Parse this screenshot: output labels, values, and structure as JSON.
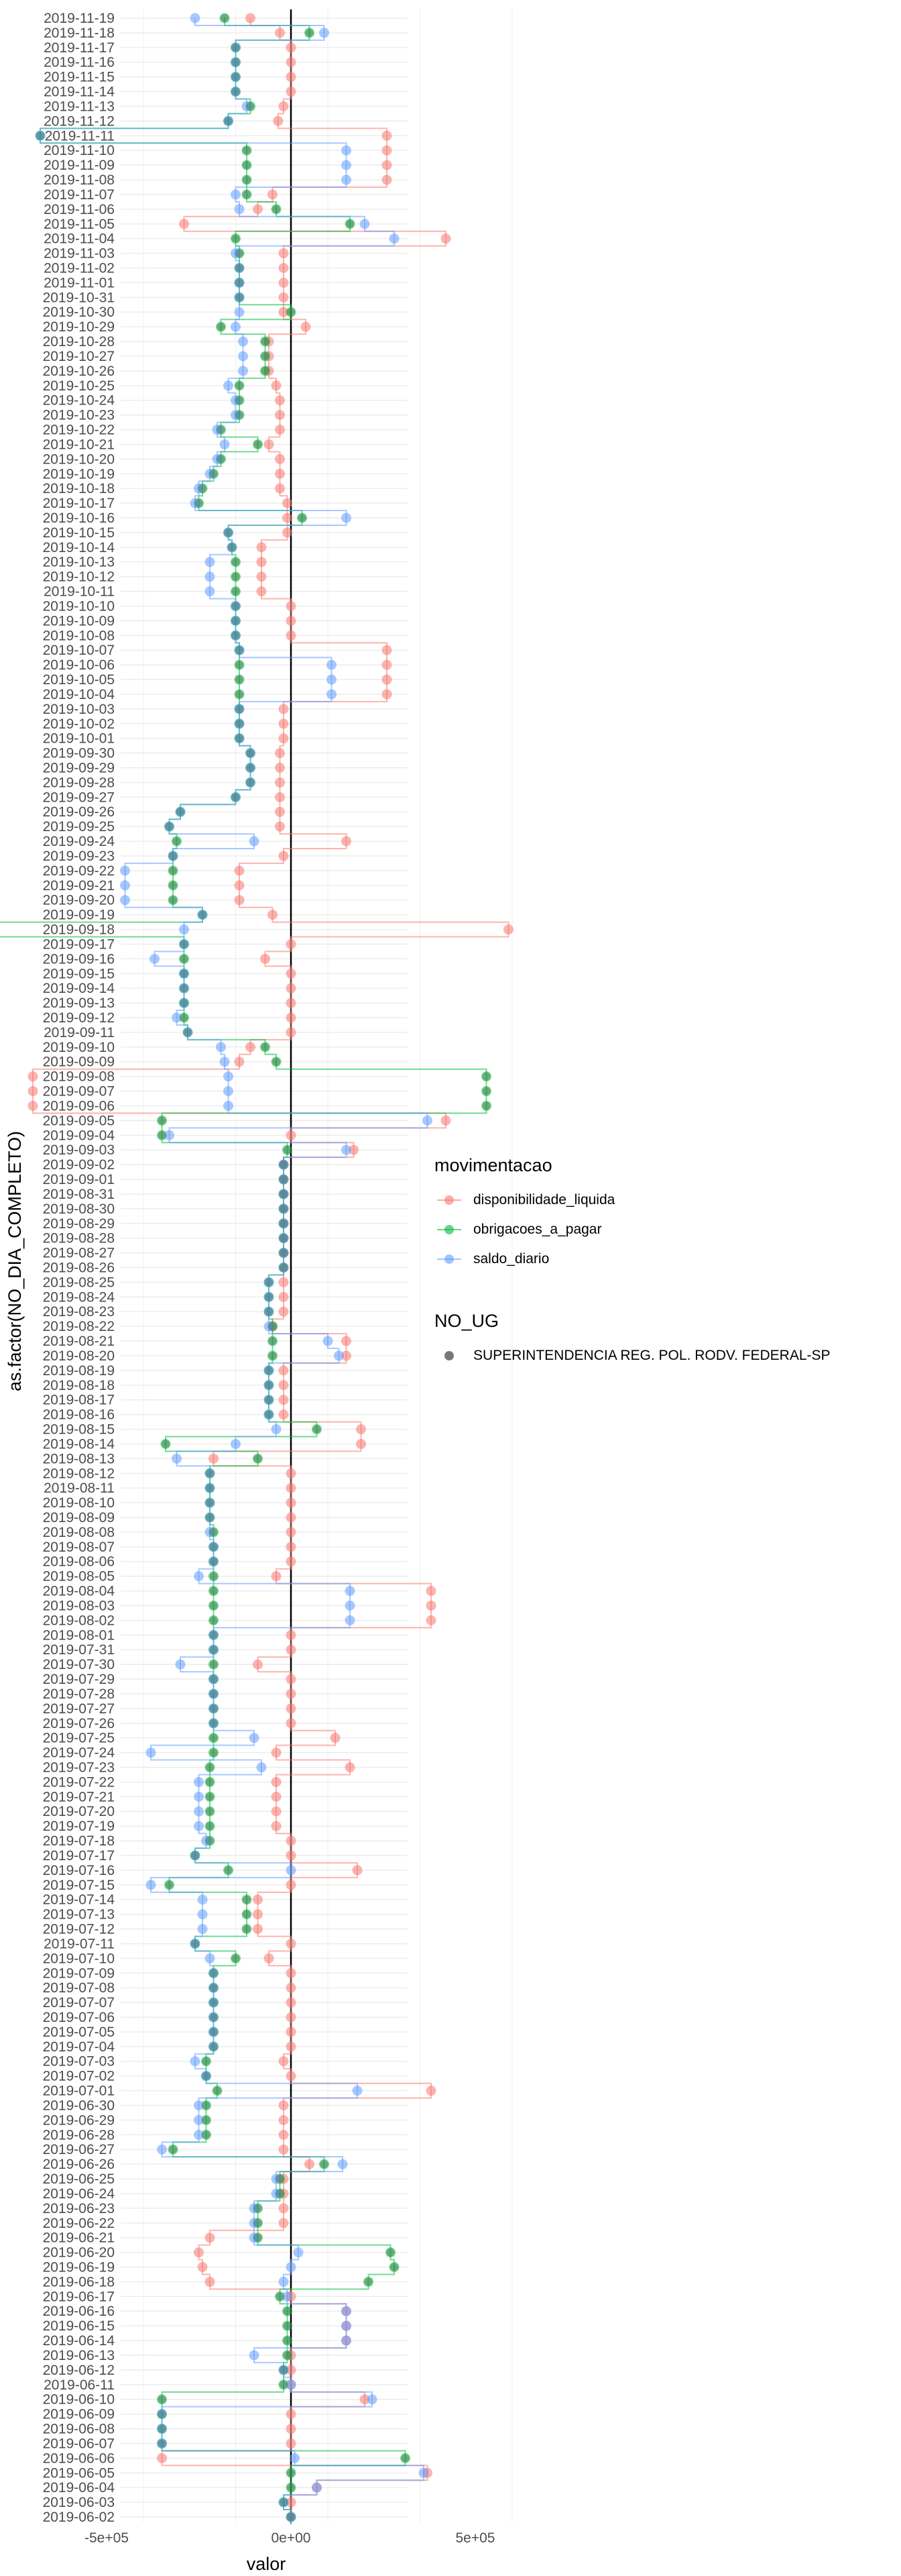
{
  "chart_data": {
    "type": "scatter",
    "xlabel": "valor",
    "ylabel": "as.factor(NO_DIA_COMPLETO)",
    "xlim": [
      -900000,
      700000
    ],
    "x_ticks": [
      -500000,
      0,
      500000
    ],
    "x_tick_labels": [
      "-5e+05",
      "0e+00",
      "5e+05"
    ],
    "grid": true,
    "legend_position": "right",
    "legend": {
      "color_title": "movimentacao",
      "color_entries": [
        "disponibilidade_liquida",
        "obrigacoes_a_pagar",
        "saldo_diario"
      ],
      "shape_title": "NO_UG",
      "shape_entries": [
        "SUPERINTENDENCIA REG. POL. RODV. FEDERAL-SP"
      ]
    },
    "colors": {
      "disponibilidade_liquida": "#F8766D",
      "obrigacoes_a_pagar": "#00BA38",
      "saldo_diario": "#619CFF",
      "shape_point": "#555555"
    },
    "categories": [
      "2019-11-19",
      "2019-11-18",
      "2019-11-17",
      "2019-11-16",
      "2019-11-15",
      "2019-11-14",
      "2019-11-13",
      "2019-11-12",
      "2019-11-11",
      "2019-11-10",
      "2019-11-09",
      "2019-11-08",
      "2019-11-07",
      "2019-11-06",
      "2019-11-05",
      "2019-11-04",
      "2019-11-03",
      "2019-11-02",
      "2019-11-01",
      "2019-10-31",
      "2019-10-30",
      "2019-10-29",
      "2019-10-28",
      "2019-10-27",
      "2019-10-26",
      "2019-10-25",
      "2019-10-24",
      "2019-10-23",
      "2019-10-22",
      "2019-10-21",
      "2019-10-20",
      "2019-10-19",
      "2019-10-18",
      "2019-10-17",
      "2019-10-16",
      "2019-10-15",
      "2019-10-14",
      "2019-10-13",
      "2019-10-12",
      "2019-10-11",
      "2019-10-10",
      "2019-10-09",
      "2019-10-08",
      "2019-10-07",
      "2019-10-06",
      "2019-10-05",
      "2019-10-04",
      "2019-10-03",
      "2019-10-02",
      "2019-10-01",
      "2019-09-30",
      "2019-09-29",
      "2019-09-28",
      "2019-09-27",
      "2019-09-26",
      "2019-09-25",
      "2019-09-24",
      "2019-09-23",
      "2019-09-22",
      "2019-09-21",
      "2019-09-20",
      "2019-09-19",
      "2019-09-18",
      "2019-09-17",
      "2019-09-16",
      "2019-09-15",
      "2019-09-14",
      "2019-09-13",
      "2019-09-12",
      "2019-09-11",
      "2019-09-10",
      "2019-09-09",
      "2019-09-08",
      "2019-09-07",
      "2019-09-06",
      "2019-09-05",
      "2019-09-04",
      "2019-09-03",
      "2019-09-02",
      "2019-09-01",
      "2019-08-31",
      "2019-08-30",
      "2019-08-29",
      "2019-08-28",
      "2019-08-27",
      "2019-08-26",
      "2019-08-25",
      "2019-08-24",
      "2019-08-23",
      "2019-08-22",
      "2019-08-21",
      "2019-08-20",
      "2019-08-19",
      "2019-08-18",
      "2019-08-17",
      "2019-08-16",
      "2019-08-15",
      "2019-08-14",
      "2019-08-13",
      "2019-08-12",
      "2019-08-11",
      "2019-08-10",
      "2019-08-09",
      "2019-08-08",
      "2019-08-07",
      "2019-08-06",
      "2019-08-05",
      "2019-08-04",
      "2019-08-03",
      "2019-08-02",
      "2019-08-01",
      "2019-07-31",
      "2019-07-30",
      "2019-07-29",
      "2019-07-28",
      "2019-07-27",
      "2019-07-26",
      "2019-07-25",
      "2019-07-24",
      "2019-07-23",
      "2019-07-22",
      "2019-07-21",
      "2019-07-20",
      "2019-07-19",
      "2019-07-18",
      "2019-07-17",
      "2019-07-16",
      "2019-07-15",
      "2019-07-14",
      "2019-07-13",
      "2019-07-12",
      "2019-07-11",
      "2019-07-10",
      "2019-07-09",
      "2019-07-08",
      "2019-07-07",
      "2019-07-06",
      "2019-07-05",
      "2019-07-04",
      "2019-07-03",
      "2019-07-02",
      "2019-07-01",
      "2019-06-30",
      "2019-06-29",
      "2019-06-28",
      "2019-06-27",
      "2019-06-26",
      "2019-06-25",
      "2019-06-24",
      "2019-06-23",
      "2019-06-22",
      "2019-06-21",
      "2019-06-20",
      "2019-06-19",
      "2019-06-18",
      "2019-06-17",
      "2019-06-16",
      "2019-06-15",
      "2019-06-14",
      "2019-06-13",
      "2019-06-12",
      "2019-06-11",
      "2019-06-10",
      "2019-06-09",
      "2019-06-08",
      "2019-06-07",
      "2019-06-06",
      "2019-06-05",
      "2019-06-04",
      "2019-06-03",
      "2019-06-02"
    ],
    "series": [
      {
        "name": "disponibilidade_liquida",
        "values": [
          -110000,
          -30000,
          0,
          0,
          0,
          0,
          -20000,
          -35000,
          260000,
          260000,
          260000,
          260000,
          -50000,
          -90000,
          -290000,
          420000,
          -20000,
          -20000,
          -20000,
          -20000,
          -20000,
          40000,
          -60000,
          -60000,
          -60000,
          -40000,
          -30000,
          -30000,
          -30000,
          -60000,
          -30000,
          -30000,
          -30000,
          -10000,
          -10000,
          -10000,
          -80000,
          -80000,
          -80000,
          -80000,
          0,
          0,
          0,
          260000,
          260000,
          260000,
          260000,
          -20000,
          -20000,
          -20000,
          -30000,
          -30000,
          -30000,
          -30000,
          -30000,
          -30000,
          150000,
          -20000,
          -140000,
          -140000,
          -140000,
          -50000,
          590000,
          0,
          -70000,
          0,
          0,
          0,
          0,
          0,
          -110000,
          -140000,
          -700000,
          -700000,
          -700000,
          420000,
          0,
          170000,
          -20000,
          -20000,
          -20000,
          -20000,
          -20000,
          -20000,
          -20000,
          -20000,
          -20000,
          -20000,
          -20000,
          -50000,
          150000,
          150000,
          -20000,
          -20000,
          -20000,
          -20000,
          190000,
          190000,
          -210000,
          0,
          0,
          0,
          0,
          0,
          0,
          0,
          -40000,
          380000,
          380000,
          380000,
          0,
          0,
          -90000,
          0,
          0,
          0,
          0,
          120000,
          -40000,
          160000,
          -40000,
          -40000,
          -40000,
          -40000,
          0,
          0,
          180000,
          0,
          -90000,
          -90000,
          -90000,
          0,
          -60000,
          0,
          0,
          0,
          0,
          0,
          0,
          -20000,
          0,
          380000,
          -20000,
          -20000,
          -20000,
          -20000,
          50000,
          -20000,
          -20000,
          -20000,
          -20000,
          -220000,
          -250000,
          -240000,
          -220000,
          0,
          150000,
          150000,
          150000,
          0,
          0,
          0,
          200000,
          0,
          0,
          0,
          -350000,
          370000,
          70000,
          0,
          0
        ]
      },
      {
        "name": "obrigacoes_a_pagar",
        "values": [
          -180000,
          50000,
          -150000,
          -150000,
          -150000,
          -150000,
          -110000,
          -170000,
          -680000,
          -120000,
          -120000,
          -120000,
          -120000,
          -40000,
          160000,
          -150000,
          -140000,
          -140000,
          -140000,
          -140000,
          0,
          -190000,
          -70000,
          -70000,
          -70000,
          -140000,
          -140000,
          -140000,
          -190000,
          -90000,
          -190000,
          -210000,
          -240000,
          -250000,
          30000,
          -170000,
          -160000,
          -150000,
          -150000,
          -150000,
          -150000,
          -150000,
          -150000,
          -140000,
          -140000,
          -140000,
          -140000,
          -140000,
          -140000,
          -140000,
          -110000,
          -110000,
          -110000,
          -150000,
          -300000,
          -330000,
          -310000,
          -320000,
          -320000,
          -320000,
          -320000,
          -240000,
          -880000,
          -290000,
          -290000,
          -290000,
          -290000,
          -290000,
          -290000,
          -280000,
          -70000,
          -40000,
          530000,
          530000,
          530000,
          -350000,
          -350000,
          -10000,
          -20000,
          -20000,
          -20000,
          -20000,
          -20000,
          -20000,
          -20000,
          -20000,
          -60000,
          -60000,
          -60000,
          -50000,
          -50000,
          -50000,
          -60000,
          -60000,
          -60000,
          -60000,
          70000,
          -340000,
          -90000,
          -220000,
          -220000,
          -220000,
          -220000,
          -210000,
          -210000,
          -210000,
          -210000,
          -210000,
          -210000,
          -210000,
          -210000,
          -210000,
          -210000,
          -210000,
          -210000,
          -210000,
          -210000,
          -210000,
          -210000,
          -220000,
          -220000,
          -220000,
          -220000,
          -220000,
          -220000,
          -260000,
          -170000,
          -330000,
          -120000,
          -120000,
          -120000,
          -260000,
          -150000,
          -210000,
          -210000,
          -210000,
          -210000,
          -210000,
          -210000,
          -230000,
          -230000,
          -200000,
          -230000,
          -230000,
          -230000,
          -320000,
          90000,
          -30000,
          -30000,
          -90000,
          -90000,
          -90000,
          270000,
          280000,
          210000,
          -30000,
          -10000,
          -10000,
          -10000,
          -10000,
          -20000,
          -20000,
          -350000,
          -350000,
          -350000,
          -350000,
          310000,
          0,
          0,
          -20000,
          0
        ]
      },
      {
        "name": "saldo_diario",
        "values": [
          -260000,
          90000,
          -150000,
          -150000,
          -150000,
          -150000,
          -120000,
          -170000,
          -680000,
          150000,
          150000,
          150000,
          -150000,
          -140000,
          200000,
          280000,
          -150000,
          -140000,
          -140000,
          -140000,
          -140000,
          -150000,
          -130000,
          -130000,
          -130000,
          -170000,
          -150000,
          -150000,
          -200000,
          -180000,
          -200000,
          -220000,
          -250000,
          -260000,
          150000,
          -170000,
          -160000,
          -220000,
          -220000,
          -220000,
          -150000,
          -150000,
          -150000,
          -140000,
          110000,
          110000,
          110000,
          -140000,
          -140000,
          -140000,
          -110000,
          -110000,
          -110000,
          -150000,
          -300000,
          -330000,
          -100000,
          -320000,
          -450000,
          -450000,
          -450000,
          -240000,
          -290000,
          -290000,
          -370000,
          -290000,
          -290000,
          -290000,
          -310000,
          -280000,
          -190000,
          -180000,
          -170000,
          -170000,
          -170000,
          370000,
          -330000,
          150000,
          -20000,
          -20000,
          -20000,
          -20000,
          -20000,
          -20000,
          -20000,
          -20000,
          -60000,
          -60000,
          -60000,
          -60000,
          100000,
          130000,
          -60000,
          -60000,
          -60000,
          -60000,
          -40000,
          -150000,
          -310000,
          -220000,
          -220000,
          -220000,
          -220000,
          -220000,
          -210000,
          -210000,
          -250000,
          160000,
          160000,
          160000,
          -210000,
          -210000,
          -300000,
          -210000,
          -210000,
          -210000,
          -210000,
          -100000,
          -380000,
          -80000,
          -250000,
          -250000,
          -250000,
          -250000,
          -230000,
          -260000,
          0,
          -380000,
          -240000,
          -240000,
          -240000,
          -260000,
          -220000,
          -210000,
          -210000,
          -210000,
          -210000,
          -210000,
          -210000,
          -260000,
          -230000,
          180000,
          -250000,
          -250000,
          -250000,
          -350000,
          140000,
          -40000,
          -40000,
          -100000,
          -100000,
          -100000,
          20000,
          0,
          -20000,
          -10000,
          150000,
          150000,
          150000,
          -100000,
          -20000,
          0,
          220000,
          -350000,
          -350000,
          -350000,
          10000,
          360000,
          70000,
          -20000,
          0
        ]
      },
      {
        "name": "SUPERINTENDENCIA REG. POL. RODV. FEDERAL-SP",
        "values": [
          -180000,
          50000,
          -150000,
          -150000,
          -150000,
          -150000,
          -110000,
          -170000,
          -680000,
          -120000,
          -120000,
          -120000,
          -120000,
          -40000,
          160000,
          -150000,
          -140000,
          -140000,
          -140000,
          -140000,
          0,
          -190000,
          -70000,
          -70000,
          -70000,
          -140000,
          -140000,
          -140000,
          -190000,
          -90000,
          -190000,
          -210000,
          -240000,
          -250000,
          30000,
          -170000,
          -160000,
          -150000,
          -150000,
          -150000,
          -150000,
          -150000,
          -150000,
          -140000,
          -140000,
          -140000,
          -140000,
          -140000,
          -140000,
          -140000,
          -110000,
          -110000,
          -110000,
          -150000,
          -300000,
          -330000,
          -310000,
          -320000,
          -320000,
          -320000,
          -320000,
          -240000,
          -880000,
          -290000,
          -290000,
          -290000,
          -290000,
          -290000,
          -290000,
          -280000,
          -70000,
          -40000,
          530000,
          530000,
          530000,
          -350000,
          -350000,
          -10000,
          -20000,
          -20000,
          -20000,
          -20000,
          -20000,
          -20000,
          -20000,
          -20000,
          -60000,
          -60000,
          -60000,
          -50000,
          -50000,
          -50000,
          -60000,
          -60000,
          -60000,
          -60000,
          70000,
          -340000,
          -90000,
          -220000,
          -220000,
          -220000,
          -220000,
          -210000,
          -210000,
          -210000,
          -210000,
          -210000,
          -210000,
          -210000,
          -210000,
          -210000,
          -210000,
          -210000,
          -210000,
          -210000,
          -210000,
          -210000,
          -210000,
          -220000,
          -220000,
          -220000,
          -220000,
          -220000,
          -220000,
          -260000,
          -170000,
          -330000,
          -120000,
          -120000,
          -120000,
          -260000,
          -150000,
          -210000,
          -210000,
          -210000,
          -210000,
          -210000,
          -210000,
          -230000,
          -230000,
          -200000,
          -230000,
          -230000,
          -230000,
          -320000,
          90000,
          -30000,
          -30000,
          -90000,
          -90000,
          -90000,
          270000,
          280000,
          210000,
          -30000,
          -10000,
          -10000,
          -10000,
          -10000,
          -20000,
          -20000,
          -350000,
          -350000,
          -350000,
          -350000,
          310000,
          0,
          0,
          -20000,
          0
        ]
      }
    ]
  }
}
